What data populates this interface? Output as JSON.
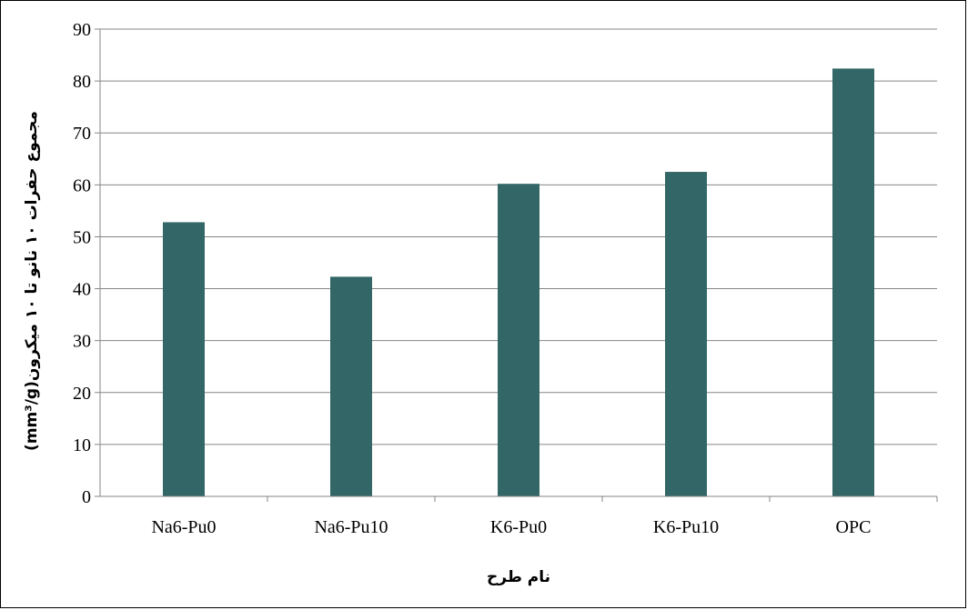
{
  "chart_data": {
    "type": "bar",
    "categories": [
      "Na6-Pu0",
      "Na6-Pu10",
      "K6-Pu0",
      "K6-Pu10",
      "OPC"
    ],
    "values": [
      52.8,
      42.3,
      60.2,
      62.5,
      82.4
    ],
    "title": "",
    "xlabel": "نام طرح",
    "ylabel": "مجموع حفرات ۱۰ نانو تا ۱۰ میکرون(mm³/g)",
    "ylim": [
      0,
      90
    ],
    "yticks": [
      0,
      10,
      20,
      30,
      40,
      50,
      60,
      70,
      80,
      90
    ],
    "grid": true,
    "legend": "none",
    "bar_color": "#336666"
  }
}
